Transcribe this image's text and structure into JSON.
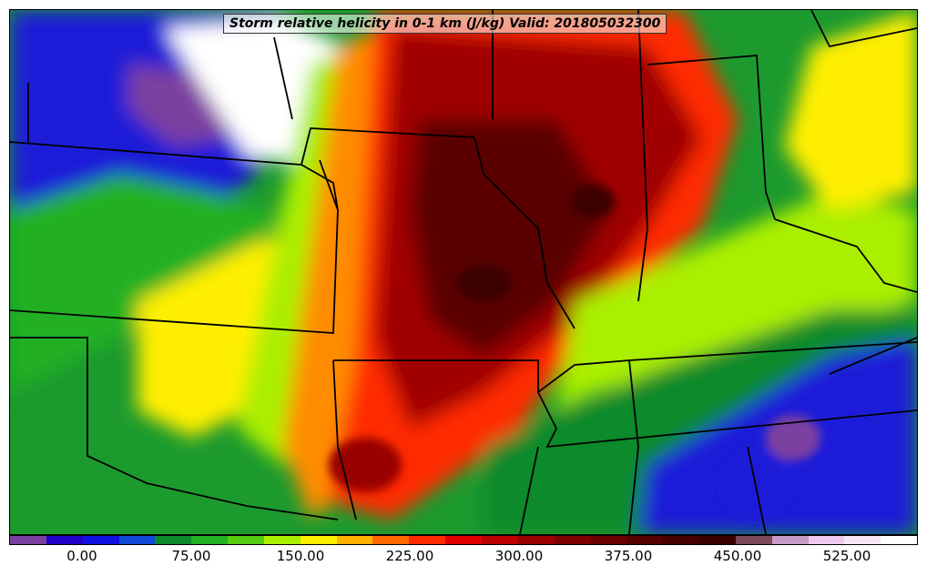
{
  "title": "Storm relative helicity in 0-1 km (J/kg) Valid: 201805032300",
  "map": {
    "variable": "Storm relative helicity in 0-1 km",
    "units": "J/kg",
    "valid_time": "201805032300",
    "background_color": "#1c9a2e"
  },
  "colorbar": {
    "colors": [
      "#7b3fa0",
      "#2200c8",
      "#1010e0",
      "#1048d8",
      "#0a8a2a",
      "#22b022",
      "#55cc11",
      "#aaee00",
      "#ffee00",
      "#ffb000",
      "#ff6a00",
      "#ff2a00",
      "#e00000",
      "#bb0000",
      "#990000",
      "#800000",
      "#6a0000",
      "#560000",
      "#460000",
      "#3a0000",
      "#7a4a5a",
      "#c89ac8",
      "#eec8ee",
      "#f6e6f6",
      "#ffffff"
    ],
    "tick_labels": [
      "0.00",
      "75.00",
      "150.00",
      "225.00",
      "300.00",
      "375.00",
      "450.00",
      "525.00"
    ]
  }
}
